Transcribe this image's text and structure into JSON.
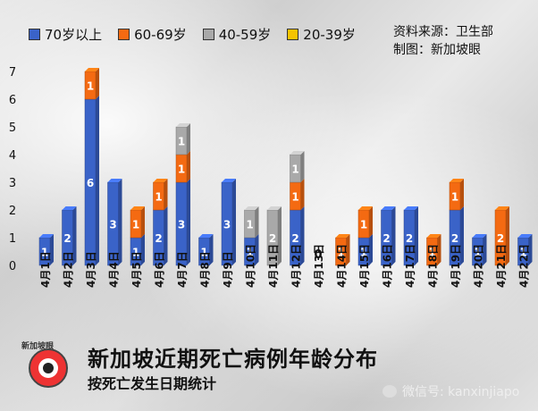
{
  "legend": [
    {
      "label": "70岁以上",
      "color": "#3a63c8"
    },
    {
      "label": "60-69岁",
      "color": "#f46a12"
    },
    {
      "label": "40-59岁",
      "color": "#a9a9a9"
    },
    {
      "label": "20-39岁",
      "color": "#f6c400"
    }
  ],
  "source": {
    "line1": "资料来源：卫生部",
    "line2": "制图：新加坡眼"
  },
  "footer": {
    "title": "新加坡近期死亡病例年龄分布",
    "subtitle": "按死亡发生日期统计",
    "logo_text": "新加坡眼",
    "wechat": "微信号: kanxinjiapo"
  },
  "chart_data": {
    "type": "bar",
    "stacked": true,
    "title": "新加坡近期死亡病例年龄分布",
    "subtitle": "按死亡发生日期统计",
    "categories": [
      "4月1日",
      "4月2日",
      "4月3日",
      "4月4日",
      "4月5日",
      "4月6日",
      "4月7日",
      "4月8日",
      "4月9日",
      "4月10日",
      "4月11日",
      "4月12日",
      "4月13日",
      "4月14日",
      "4月15日",
      "4月16日",
      "4月17日",
      "4月18日",
      "4月19日",
      "4月20日",
      "4月21日",
      "4月22日"
    ],
    "series": [
      {
        "name": "70岁以上",
        "color": "#3a63c8",
        "values": [
          1,
          2,
          6,
          3,
          1,
          2,
          3,
          1,
          3,
          1,
          0,
          2,
          0,
          0,
          1,
          2,
          2,
          0,
          2,
          1,
          0,
          1
        ]
      },
      {
        "name": "60-69岁",
        "color": "#f46a12",
        "values": [
          0,
          0,
          1,
          0,
          1,
          1,
          1,
          0,
          0,
          0,
          0,
          1,
          0,
          1,
          1,
          0,
          0,
          1,
          1,
          0,
          2,
          0
        ]
      },
      {
        "name": "40-59岁",
        "color": "#a9a9a9",
        "values": [
          0,
          0,
          0,
          0,
          0,
          0,
          1,
          0,
          0,
          1,
          2,
          1,
          0,
          0,
          0,
          0,
          0,
          0,
          0,
          0,
          0,
          0
        ]
      },
      {
        "name": "20-39岁",
        "color": "#f6c400",
        "values": [
          0,
          0,
          0,
          0,
          0,
          0,
          0,
          0,
          0,
          0,
          0,
          0,
          0,
          0,
          0,
          0,
          0,
          0,
          0,
          0,
          0,
          0
        ]
      }
    ],
    "zero_labels": [
      "0"
    ],
    "yticks": [
      "0",
      "1",
      "2",
      "3",
      "4",
      "5",
      "6",
      "7"
    ],
    "ylim": [
      0,
      7
    ],
    "grid": false,
    "legend_position": "top-left"
  }
}
